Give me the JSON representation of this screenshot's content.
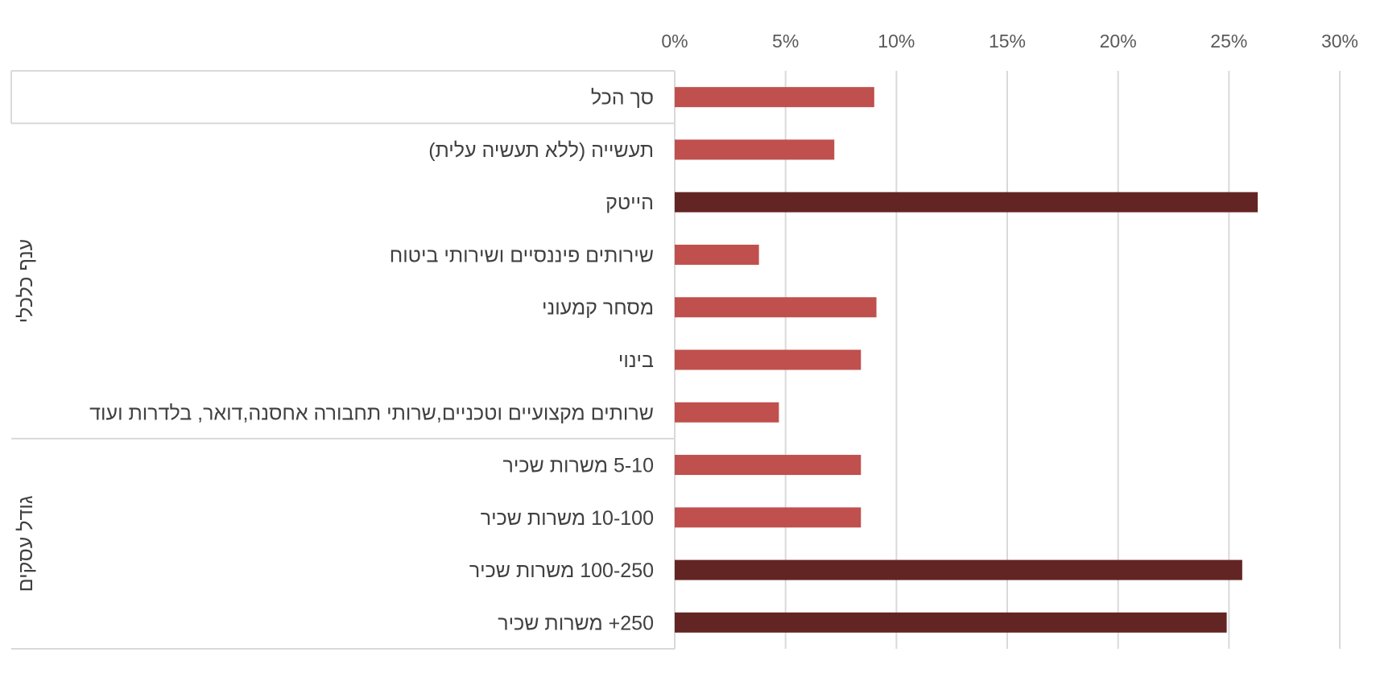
{
  "chart_data": {
    "type": "bar",
    "orientation": "horizontal",
    "xlim": [
      0,
      30
    ],
    "x_ticks": [
      "0%",
      "5%",
      "10%",
      "15%",
      "20%",
      "25%",
      "30%"
    ],
    "x_tick_values": [
      0,
      5,
      10,
      15,
      20,
      25,
      30
    ],
    "grid": true,
    "colors": {
      "normal": "#c0504d",
      "highlight": "#632523",
      "grid": "#d9d9d9"
    },
    "groups": [
      {
        "label": "",
        "categories": [
          0
        ]
      },
      {
        "label": "ענף כלכלי",
        "categories": [
          1,
          2,
          3,
          4,
          5,
          6
        ]
      },
      {
        "label": "גודל עסקים",
        "categories": [
          7,
          8,
          9,
          10
        ]
      }
    ],
    "categories": [
      "סך הכל",
      "תעשייה (ללא תעשיה עלית)",
      "הייטק",
      " שירותים פיננסיים ושירותי ביטוח",
      "מסחר קמעוני",
      "בינוי",
      "שרותים מקצועיים וטכניים,שרותי תחבורה אחסנה,דואר, בלדרות ועוד",
      "5-10 משרות שכיר",
      "10-100 משרות שכיר",
      "100-250 משרות שכיר",
      "250+ משרות שכיר"
    ],
    "values": [
      9.0,
      7.2,
      26.3,
      3.8,
      9.1,
      8.4,
      4.7,
      8.4,
      8.4,
      25.6,
      24.9
    ],
    "highlight": [
      false,
      false,
      true,
      false,
      false,
      false,
      false,
      false,
      false,
      true,
      true
    ]
  }
}
